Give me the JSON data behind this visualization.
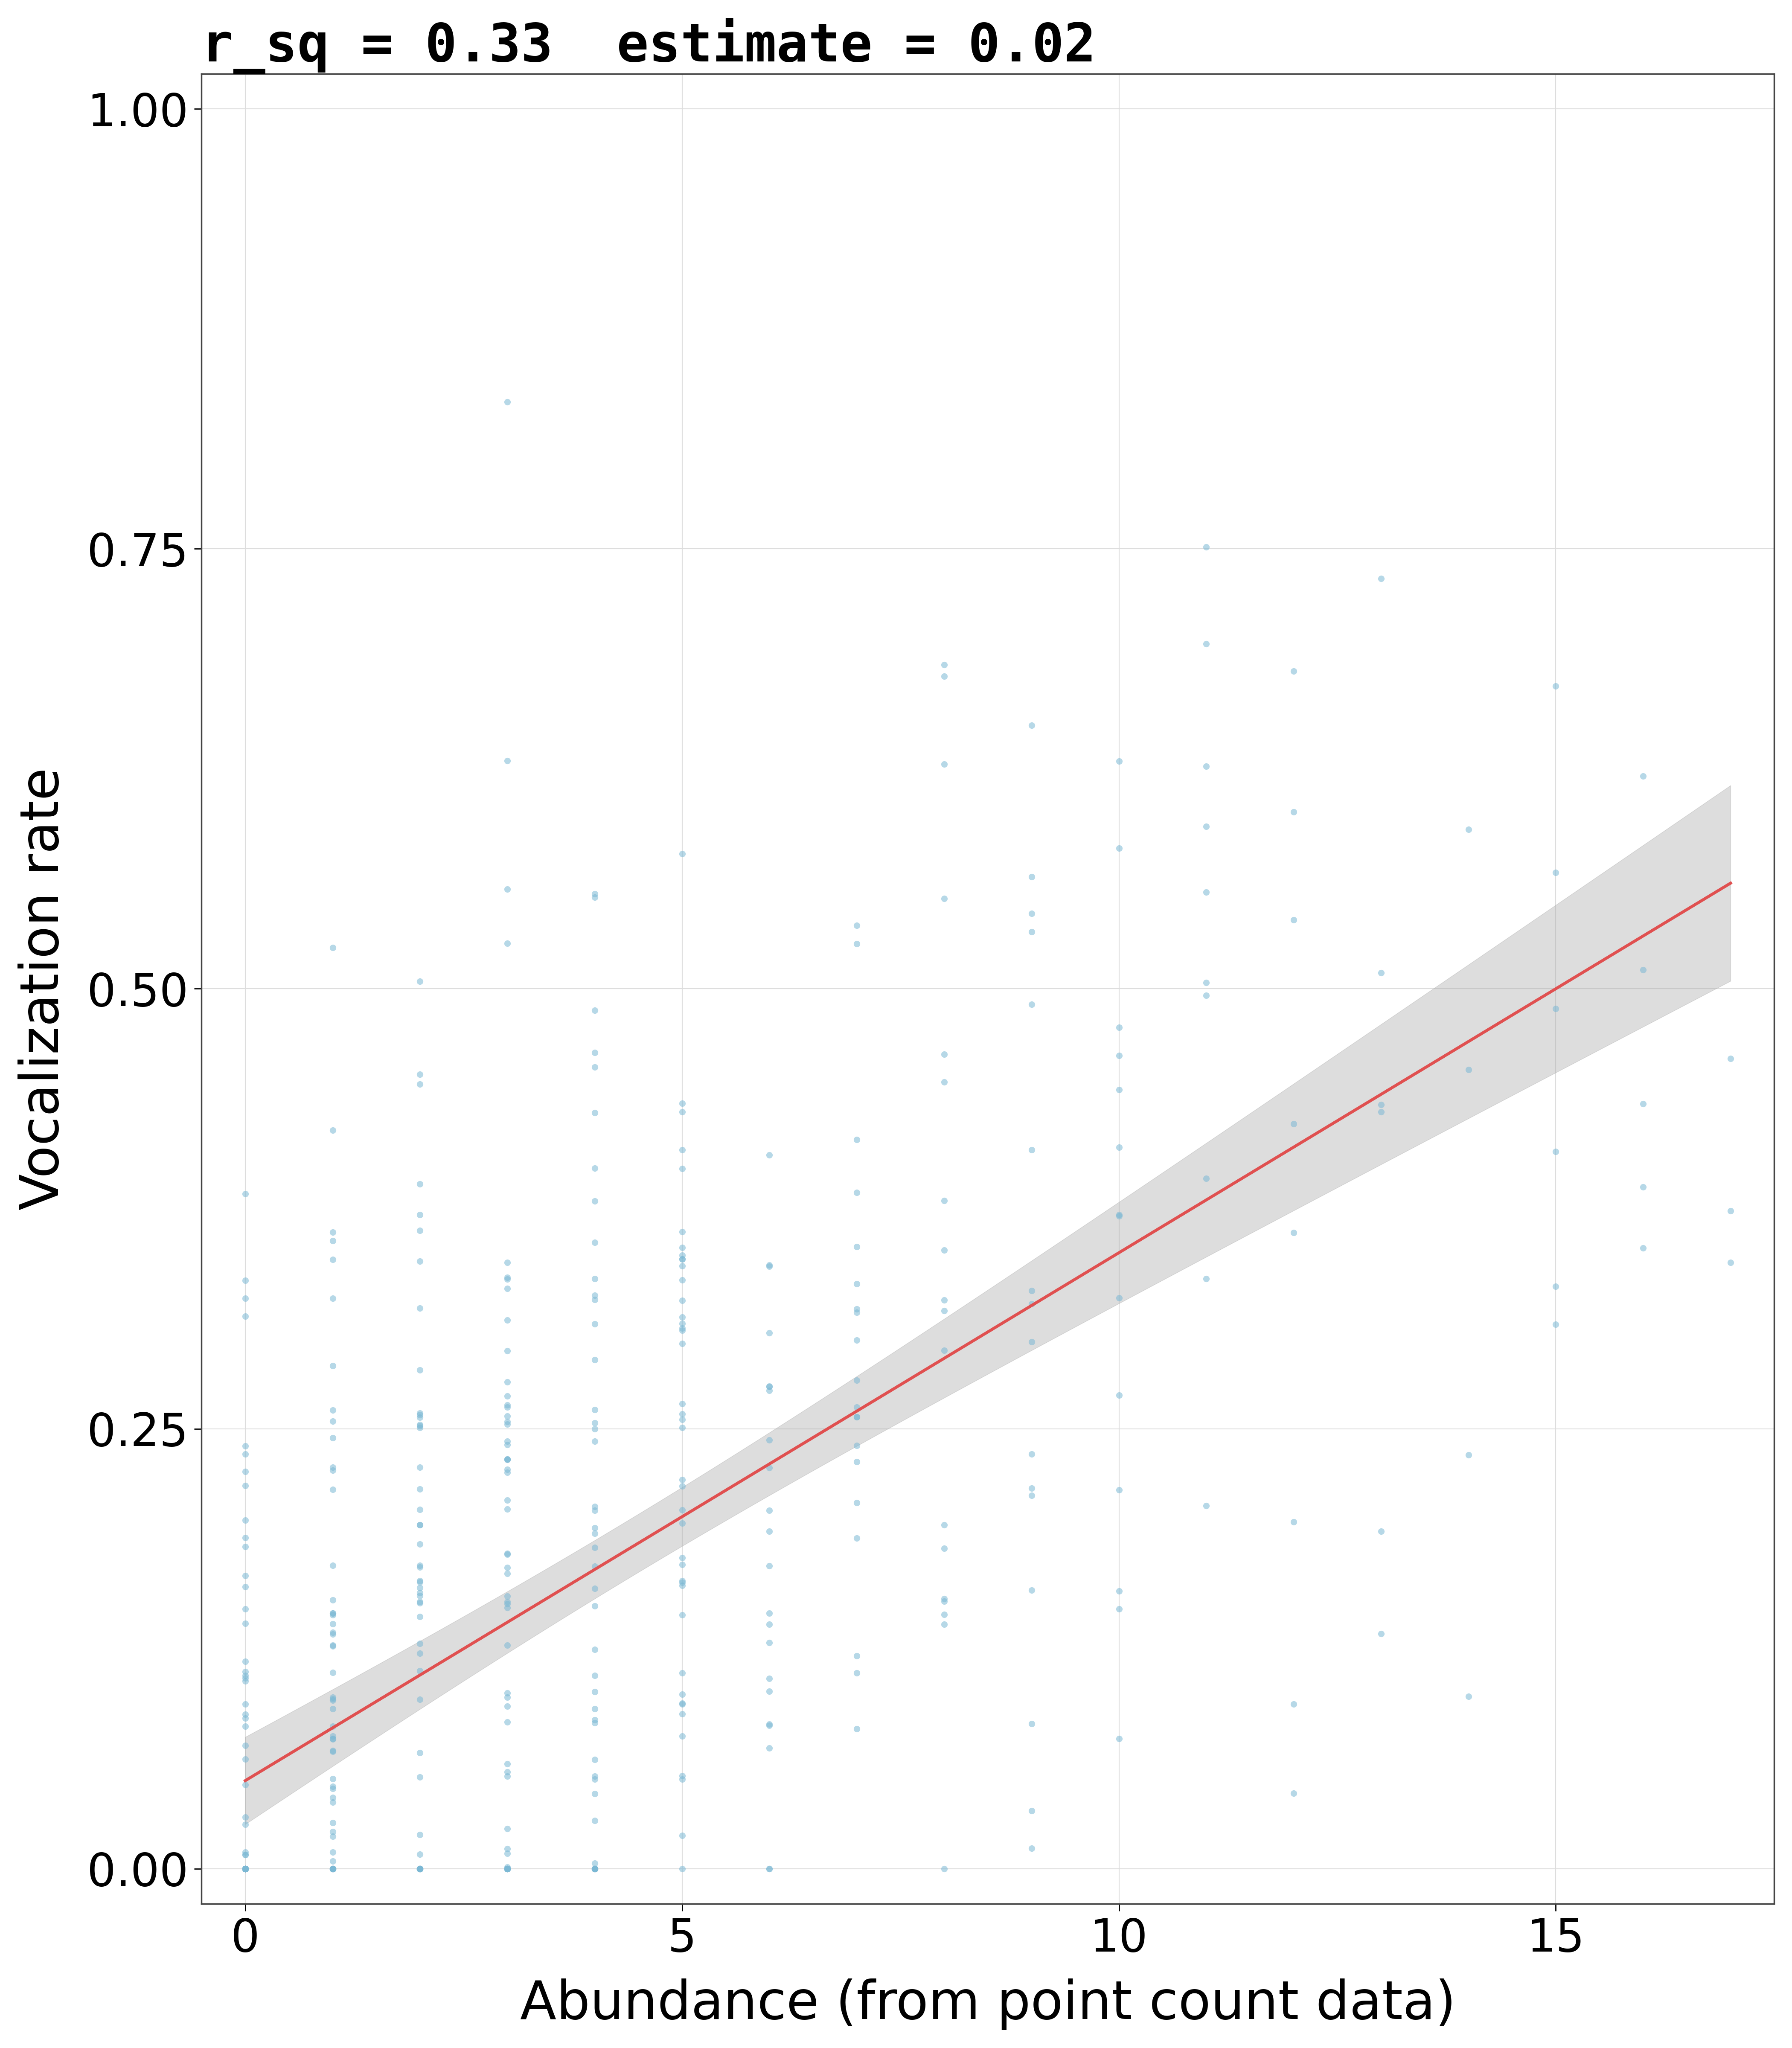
{
  "title": "r_sq = 0.33  estimate = 0.02",
  "xlabel": "Abundance (from point count data)",
  "ylabel": "Vocalization rate",
  "xlim": [
    -0.5,
    17.5
  ],
  "ylim": [
    -0.02,
    1.02
  ],
  "xticks": [
    0,
    5,
    10,
    15
  ],
  "yticks": [
    0.0,
    0.25,
    0.5,
    0.75,
    1.0
  ],
  "scatter_color": "#7BB8D4",
  "scatter_alpha": 0.55,
  "scatter_size": 120,
  "line_color": "#E05050",
  "ci_color": "#AAAAAA",
  "ci_alpha": 0.4,
  "intercept": 0.05,
  "slope": 0.03,
  "background_color": "#FFFFFF",
  "grid_color": "#DDDDDD",
  "grid_linewidth": 1.5,
  "title_fontsize": 28,
  "axis_label_fontsize": 28,
  "tick_fontsize": 24,
  "noise_seed": 42,
  "line_width": 5,
  "x_data": [
    0,
    0,
    0,
    0,
    0,
    0,
    0,
    0,
    0,
    0,
    0,
    0,
    0,
    0,
    0,
    0,
    0,
    0,
    0,
    0,
    0,
    0,
    0,
    0,
    0,
    0,
    0,
    0,
    0,
    0,
    0,
    0,
    0,
    0,
    0,
    0,
    0,
    0,
    0,
    0,
    0,
    0,
    0,
    0,
    0,
    0,
    0,
    0,
    0,
    0,
    0,
    0,
    0,
    0,
    0,
    0,
    0,
    0,
    0,
    0,
    1,
    1,
    1,
    1,
    1,
    1,
    1,
    1,
    1,
    1,
    1,
    1,
    1,
    1,
    1,
    1,
    1,
    1,
    1,
    1,
    1,
    1,
    1,
    1,
    1,
    1,
    1,
    1,
    1,
    1,
    1,
    1,
    1,
    1,
    1,
    1,
    1,
    1,
    1,
    1,
    1,
    1,
    1,
    1,
    1,
    1,
    1,
    1,
    1,
    1,
    1,
    1,
    1,
    1,
    1,
    1,
    1,
    1,
    1,
    1,
    2,
    2,
    2,
    2,
    2,
    2,
    2,
    2,
    2,
    2,
    2,
    2,
    2,
    2,
    2,
    2,
    2,
    2,
    2,
    2,
    2,
    2,
    2,
    2,
    2,
    2,
    2,
    2,
    2,
    2,
    2,
    2,
    2,
    2,
    2,
    2,
    2,
    2,
    2,
    2,
    2,
    2,
    2,
    2,
    2,
    2,
    2,
    2,
    2,
    2,
    2,
    2,
    2,
    2,
    2,
    2,
    2,
    2,
    3,
    3,
    3,
    3,
    3,
    3,
    3,
    3,
    3,
    3,
    3,
    3,
    3,
    3,
    3,
    3,
    3,
    3,
    3,
    3,
    3,
    3,
    3,
    3,
    3,
    3,
    3,
    3,
    3,
    3,
    3,
    3,
    3,
    3,
    3,
    3,
    3,
    3,
    3,
    3,
    3,
    3,
    3,
    3,
    3,
    3,
    3,
    3,
    3,
    3,
    3,
    3,
    3,
    3,
    3,
    3,
    3,
    3,
    4,
    4,
    4,
    4,
    4,
    4,
    4,
    4,
    4,
    4,
    4,
    4,
    4,
    4,
    4,
    4,
    4,
    4,
    4,
    4,
    4,
    4,
    4,
    4,
    4,
    4,
    4,
    4,
    4,
    4,
    4,
    4,
    4,
    4,
    4,
    4,
    4,
    4,
    4,
    4,
    4,
    4,
    4,
    4,
    4,
    4,
    4,
    4,
    4,
    4,
    5,
    5,
    5,
    5,
    5,
    5,
    5,
    5,
    5,
    5,
    5,
    5,
    5,
    5,
    5,
    5,
    5,
    5,
    5,
    5,
    5,
    5,
    5,
    5,
    5,
    5,
    5,
    5,
    5,
    5,
    5,
    5,
    5,
    5,
    5,
    5,
    5,
    5,
    5,
    5,
    5,
    5,
    6,
    6,
    6,
    6,
    6,
    6,
    6,
    6,
    6,
    6,
    6,
    6,
    6,
    6,
    6,
    6,
    6,
    6,
    6,
    6,
    6,
    6,
    7,
    7,
    7,
    7,
    7,
    7,
    7,
    7,
    7,
    7,
    7,
    7,
    7,
    7,
    7,
    7,
    7,
    7,
    7,
    7,
    8,
    8,
    8,
    8,
    8,
    8,
    8,
    8,
    8,
    8,
    8,
    8,
    8,
    8,
    8,
    8,
    8,
    8,
    9,
    9,
    9,
    9,
    9,
    9,
    9,
    9,
    9,
    9,
    9,
    9,
    9,
    9,
    9,
    9,
    10,
    10,
    10,
    10,
    10,
    10,
    10,
    10,
    10,
    10,
    10,
    10,
    10,
    10,
    11,
    11,
    11,
    11,
    11,
    11,
    11,
    11,
    11,
    11,
    12,
    12,
    12,
    12,
    12,
    12,
    12,
    12,
    13,
    13,
    13,
    13,
    13,
    13,
    14,
    14,
    14,
    14,
    15,
    15,
    15,
    15,
    15,
    15,
    16,
    16,
    16,
    16,
    16,
    17,
    17,
    17
  ]
}
